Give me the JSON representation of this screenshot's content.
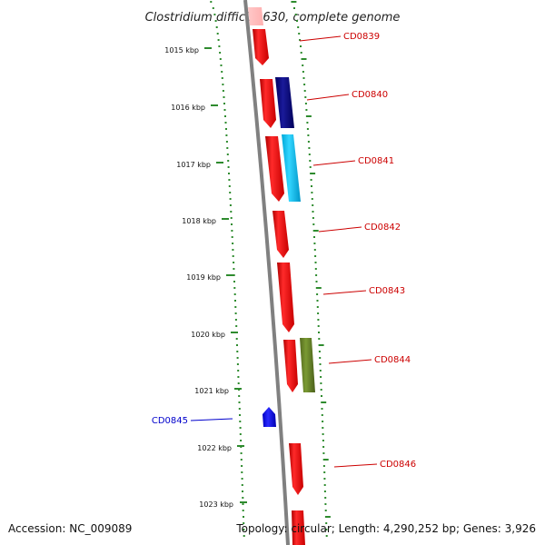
{
  "title": "Clostridium difficile 630, complete genome",
  "accession": "Accession: NC_009089",
  "topology": "Topology: circular; Length: 4,290,252 bp; Genes: 3,926",
  "colors": {
    "backbone": "#808080",
    "gc_ticks": "#2e8b2e",
    "forward_label": "#cc0000",
    "reverse_label": "#0000cc"
  },
  "kbp_labels": [
    "1015 kbp",
    "1016 kbp",
    "1017 kbp",
    "1018 kbp",
    "1019 kbp",
    "1020 kbp",
    "1021 kbp",
    "1022 kbp",
    "1023 kbp"
  ],
  "genes": [
    {
      "label": "CD0839",
      "strand": "forward"
    },
    {
      "label": "CD0840",
      "strand": "forward"
    },
    {
      "label": "CD0841",
      "strand": "forward"
    },
    {
      "label": "CD0842",
      "strand": "forward"
    },
    {
      "label": "CD0843",
      "strand": "forward"
    },
    {
      "label": "CD0844",
      "strand": "forward"
    },
    {
      "label": "CD0845",
      "strand": "reverse"
    },
    {
      "label": "CD0846",
      "strand": "forward"
    }
  ]
}
